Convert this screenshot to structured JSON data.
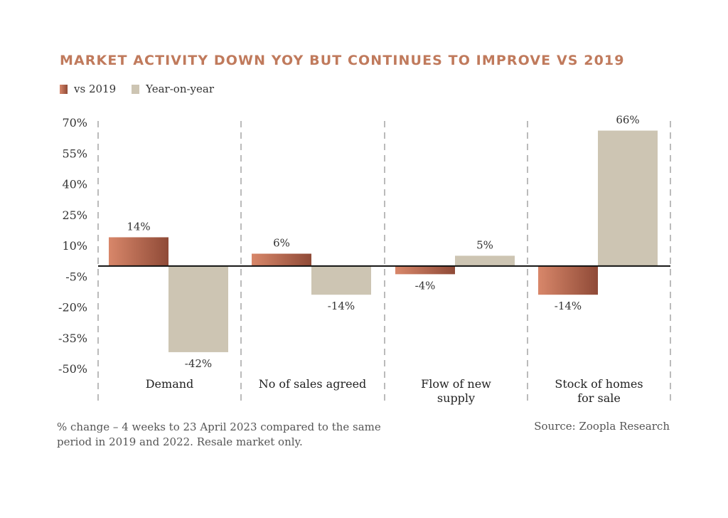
{
  "title": "MARKET ACTIVITY DOWN YOY BUT CONTINUES TO IMPROVE VS 2019",
  "legend": {
    "vs2019": "vs 2019",
    "yoy": "Year-on-year"
  },
  "colors": {
    "vs2019_light": "#d8876a",
    "vs2019_dark": "#8f4a37",
    "yoy": "#cdc5b3",
    "title": "#c07a5c"
  },
  "footnote": "% change – 4 weeks to 23 April 2023 compared to the same period in 2019 and 2022. Resale market only.",
  "source": "Source: Zoopla Research",
  "chart_data": {
    "type": "bar",
    "categories": [
      [
        "Demand"
      ],
      [
        "No of sales agreed"
      ],
      [
        "Flow of new",
        "supply"
      ],
      [
        "Stock of homes",
        "for sale"
      ]
    ],
    "series": [
      {
        "name": "vs 2019",
        "values": [
          14,
          6,
          -4,
          -14
        ],
        "labels": [
          "14%",
          "6%",
          "-4%",
          "-14%"
        ]
      },
      {
        "name": "Year-on-year",
        "values": [
          -42,
          -14,
          5,
          66
        ],
        "labels": [
          "-42%",
          "-14%",
          "5%",
          "66%"
        ]
      }
    ],
    "yticks": [
      70,
      55,
      40,
      25,
      10,
      -5,
      -20,
      -35,
      -50
    ],
    "ytick_labels": [
      "70%",
      "55%",
      "40%",
      "25%",
      "10%",
      "-5%",
      "-20%",
      "-35%",
      "-50%"
    ],
    "ylim": [
      -50,
      70
    ],
    "legend_position": "top-left",
    "grid": false
  }
}
